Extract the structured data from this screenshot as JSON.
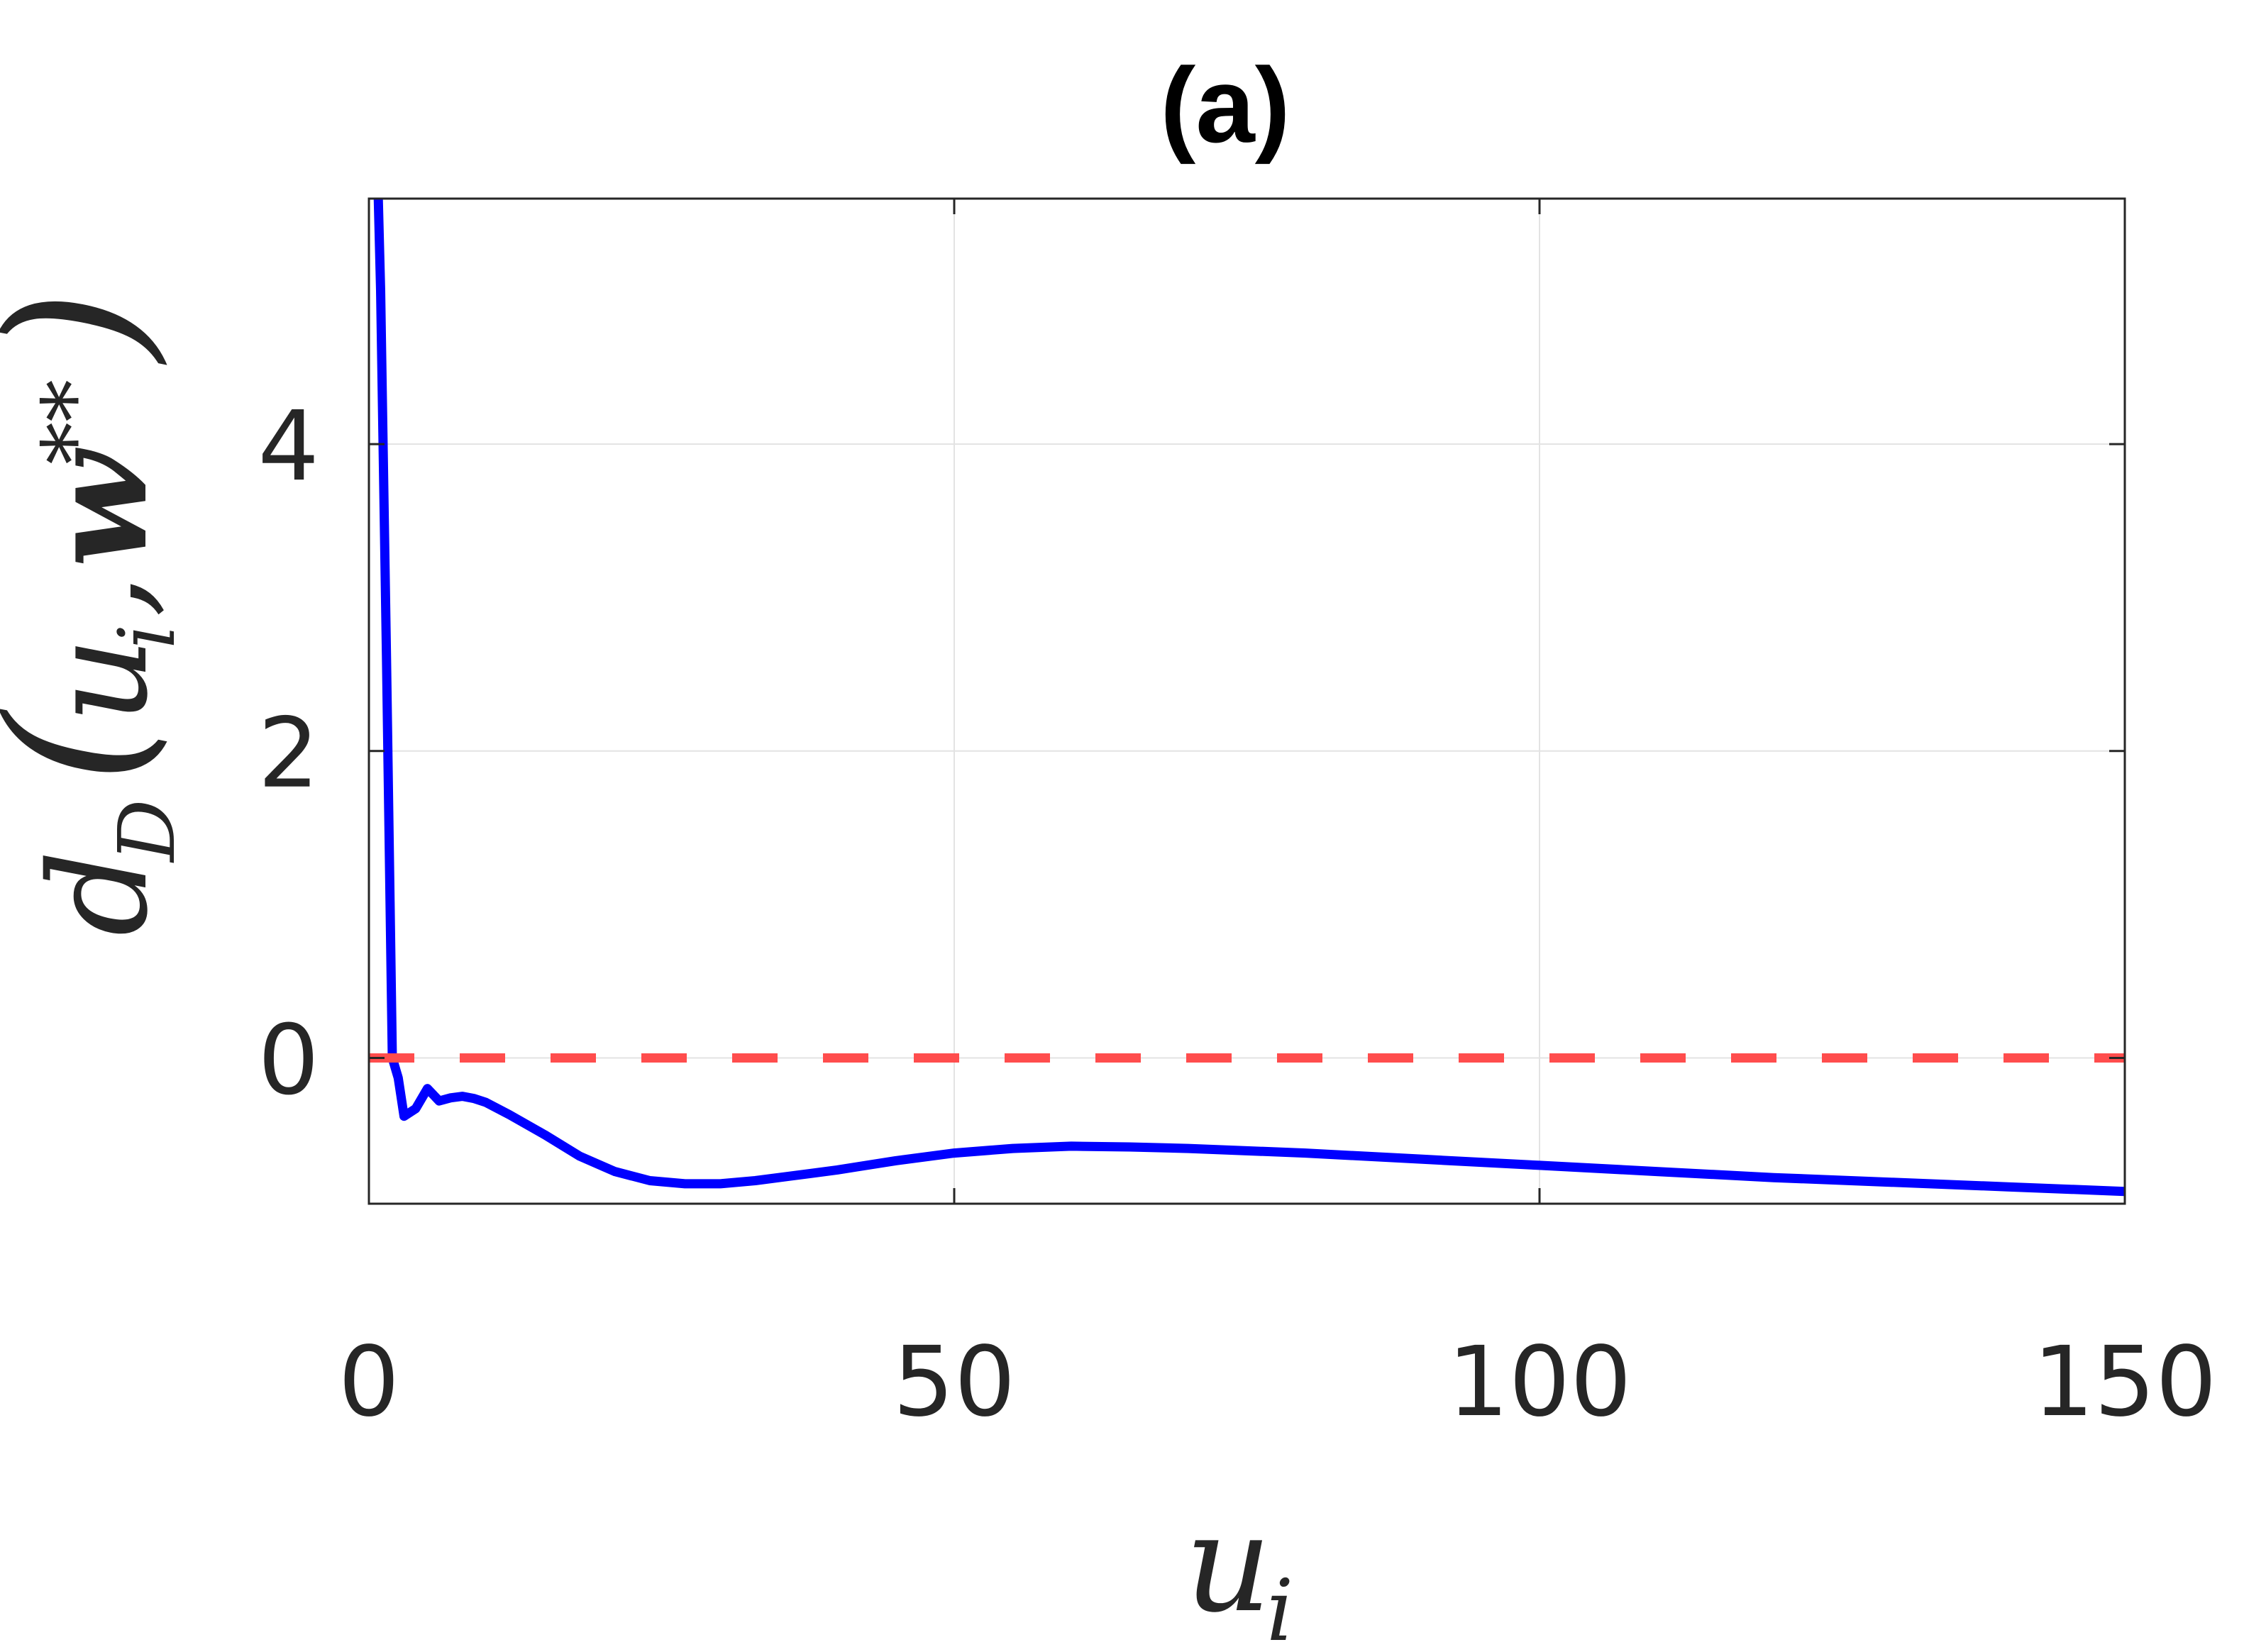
{
  "chart_data": {
    "type": "line",
    "title": "(a)",
    "xlabel": "u_i",
    "ylabel": "d_D(u_i, w**)",
    "xlim": [
      0,
      150
    ],
    "ylim": [
      -0.95,
      5.6
    ],
    "xticks": [
      0,
      50,
      100,
      150
    ],
    "yticks": [
      0,
      2,
      4
    ],
    "xtick_labels": [
      "0",
      "50",
      "100",
      "150"
    ],
    "ytick_labels": [
      "0",
      "2",
      "4"
    ],
    "grid": true,
    "series": [
      {
        "color": "#0000ff",
        "style": "solid",
        "x": [
          0.8,
          1,
          1.5,
          2,
          2.5,
          3,
          4,
          5,
          6,
          7,
          8,
          9,
          10,
          12,
          15,
          18,
          21,
          24,
          27,
          30,
          33,
          36,
          40,
          45,
          50,
          55,
          60,
          65,
          70,
          80,
          90,
          100,
          110,
          120,
          130,
          140,
          150
        ],
        "y": [
          5.6,
          5.0,
          2.6,
          0.0,
          -0.13,
          -0.38,
          -0.33,
          -0.2,
          -0.28,
          -0.26,
          -0.25,
          -0.265,
          -0.29,
          -0.37,
          -0.5,
          -0.64,
          -0.74,
          -0.8,
          -0.82,
          -0.82,
          -0.8,
          -0.77,
          -0.73,
          -0.67,
          -0.62,
          -0.59,
          -0.575,
          -0.58,
          -0.59,
          -0.62,
          -0.66,
          -0.7,
          -0.74,
          -0.78,
          -0.81,
          -0.84,
          -0.87
        ]
      },
      {
        "color": "#ff4d4d",
        "style": "dashed",
        "x": [
          0,
          150
        ],
        "y": [
          0,
          0
        ]
      }
    ]
  }
}
